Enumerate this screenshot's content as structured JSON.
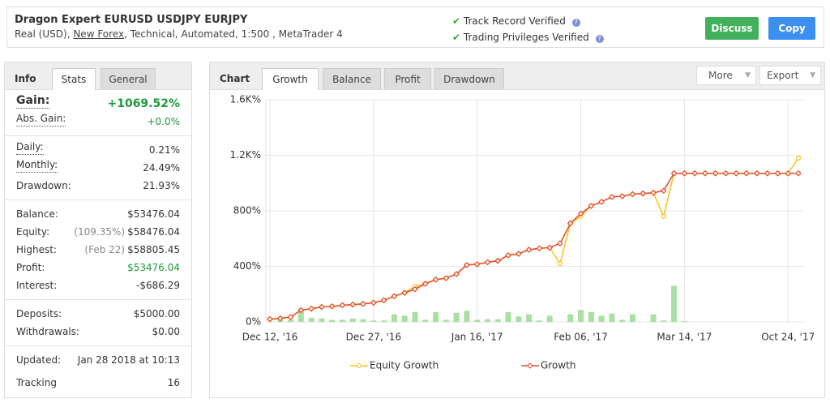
{
  "header": {
    "title": "Dragon Expert EURUSD USDJPY EURJPY",
    "subtitle_prefix": "Real (USD), ",
    "broker": "New Forex",
    "subtitle_suffix": ", Technical, Automated, 1:500 , MetaTrader 4",
    "verified": [
      "Track Record Verified",
      "Trading Privileges Verified"
    ],
    "buttons": [
      "Discuss",
      "Copy"
    ]
  },
  "info": {
    "tabs": [
      "Info",
      "Stats",
      "General"
    ],
    "groups": [
      [
        {
          "label": "Gain:",
          "value": "+1069.52%"
        },
        {
          "label": "Abs. Gain:",
          "value": "+0.0%"
        }
      ],
      [
        {
          "label": "Daily:",
          "value": "0.21%"
        },
        {
          "label": "Monthly:",
          "value": "24.49%"
        },
        {
          "label": "Drawdown:",
          "value": "21.93%"
        }
      ],
      [
        {
          "label": "Balance:",
          "value": "$53476.04"
        },
        {
          "label": "Equity:",
          "note": "(109.35%)",
          "value": "$58476.04"
        },
        {
          "label": "Highest:",
          "note": "(Feb 22)",
          "value": "$58805.45"
        },
        {
          "label": "Profit:",
          "value": "$53476.04"
        },
        {
          "label": "Interest:",
          "value": "-$686.29"
        }
      ],
      [
        {
          "label": "Deposits:",
          "value": "$5000.00"
        },
        {
          "label": "Withdrawals:",
          "value": "$0.00"
        }
      ],
      [
        {
          "label": "Updated:",
          "value": "Jan 28 2018 at 10:13"
        },
        {
          "label": "Tracking",
          "value": "16"
        }
      ]
    ]
  },
  "chart_panel": {
    "title": "Chart",
    "tabs": [
      "Growth",
      "Balance",
      "Profit",
      "Drawdown"
    ],
    "menus": [
      "More",
      "Export"
    ]
  },
  "chart_data": {
    "type": "line",
    "grid": true,
    "categories": [
      "Dec 12, '16",
      null,
      null,
      null,
      null,
      null,
      null,
      null,
      null,
      null,
      "Dec 27, '16",
      null,
      null,
      null,
      null,
      null,
      null,
      null,
      null,
      null,
      "Jan 16, '17",
      null,
      null,
      null,
      null,
      null,
      null,
      null,
      null,
      null,
      "Feb 06, '17",
      null,
      null,
      null,
      null,
      null,
      null,
      null,
      null,
      null,
      "Mar 14, '17",
      null,
      null,
      null,
      null,
      null,
      null,
      null,
      null,
      null,
      "Oct 24, '17",
      null
    ],
    "ylim": [
      0,
      1600
    ],
    "yticks": [
      {
        "value": 0,
        "label": "0%"
      },
      {
        "value": 400,
        "label": "400%"
      },
      {
        "value": 800,
        "label": "800%"
      },
      {
        "value": 1200,
        "label": "1.2K%"
      },
      {
        "value": 1600,
        "label": "1.6K%"
      }
    ],
    "series": [
      {
        "type": "bar",
        "color": "#a8e0a2",
        "values": [
          0,
          10,
          15,
          80,
          30,
          25,
          15,
          15,
          25,
          20,
          10,
          10,
          55,
          45,
          70,
          15,
          70,
          15,
          65,
          80,
          15,
          20,
          20,
          70,
          40,
          55,
          10,
          45,
          0,
          55,
          85,
          70,
          45,
          60,
          15,
          55,
          0,
          55,
          10,
          260,
          5,
          0,
          0,
          0,
          0,
          0,
          0,
          0,
          0,
          0,
          0,
          0
        ]
      },
      {
        "type": "line",
        "name": "Equity Growth",
        "color": "#f5c11c",
        "values": [
          20,
          25,
          35,
          85,
          95,
          108,
          112,
          120,
          125,
          130,
          138,
          155,
          185,
          210,
          255,
          275,
          305,
          315,
          345,
          410,
          415,
          430,
          440,
          480,
          490,
          520,
          530,
          535,
          420,
          710,
          760,
          835,
          865,
          900,
          905,
          920,
          925,
          930,
          760,
          1070,
          1070,
          1070,
          1070,
          1070,
          1070,
          1070,
          1070,
          1070,
          1070,
          1070,
          1070,
          1180
        ]
      },
      {
        "type": "line",
        "name": "Growth",
        "color": "#e5492b",
        "values": [
          20,
          25,
          35,
          85,
          95,
          108,
          112,
          120,
          125,
          130,
          138,
          155,
          185,
          210,
          235,
          275,
          305,
          315,
          345,
          410,
          415,
          430,
          440,
          480,
          490,
          520,
          530,
          535,
          565,
          710,
          780,
          835,
          865,
          900,
          905,
          920,
          925,
          930,
          945,
          1070,
          1070,
          1070,
          1070,
          1070,
          1070,
          1070,
          1070,
          1070,
          1070,
          1070,
          1070,
          1070
        ]
      }
    ]
  }
}
